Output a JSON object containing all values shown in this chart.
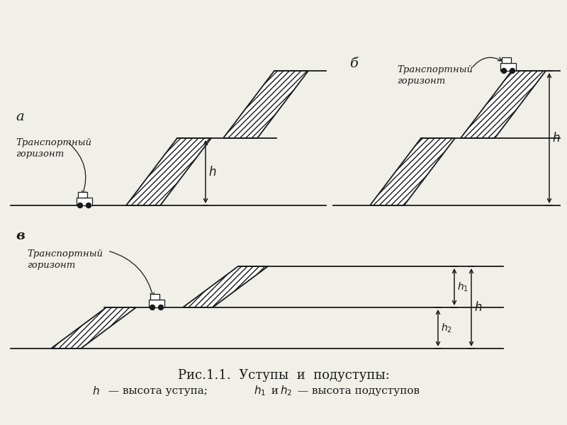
{
  "bg_color": "#f0efe8",
  "line_color": "#1a1a1a",
  "title_main": "Рис.1.1.  Уступы  и  подуступы:",
  "label_a": "а",
  "label_b": "б",
  "label_v": "в",
  "transport_text": "Транспортный\nгоризонт"
}
